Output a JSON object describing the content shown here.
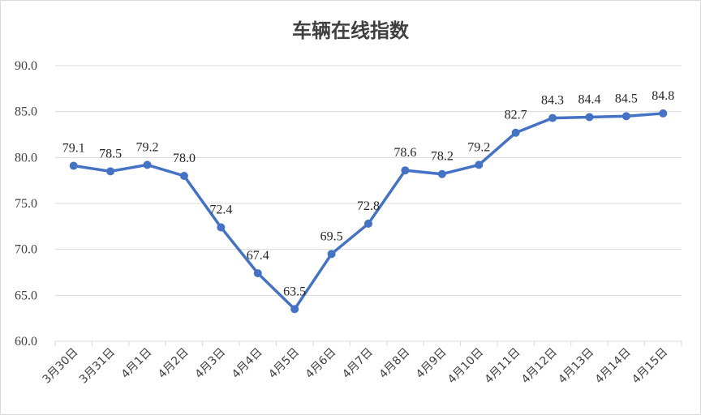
{
  "chart_data": {
    "type": "line",
    "title": "车辆在线指数",
    "categories": [
      "3月30日",
      "3月31日",
      "4月1日",
      "4月2日",
      "4月3日",
      "4月4日",
      "4月5日",
      "4月6日",
      "4月7日",
      "4月8日",
      "4月9日",
      "4月10日",
      "4月11日",
      "4月12日",
      "4月13日",
      "4月14日",
      "4月15日"
    ],
    "series": [
      {
        "values": [
          79.1,
          78.5,
          79.2,
          78.0,
          72.4,
          67.4,
          63.5,
          69.5,
          72.8,
          78.6,
          78.2,
          79.2,
          82.7,
          84.3,
          84.4,
          84.5,
          84.8
        ],
        "labels": [
          "79.1",
          "78.5",
          "79.2",
          "78.0",
          "72.4",
          "67.4",
          "63.5",
          "69.5",
          "72.8",
          "78.6",
          "78.2",
          "79.2",
          "82.7",
          "84.3",
          "84.4",
          "84.5",
          "84.8"
        ],
        "color": "#4472c4"
      }
    ],
    "ylim": [
      60,
      90
    ],
    "yticks": [
      "60.0",
      "65.0",
      "70.0",
      "75.0",
      "80.0",
      "85.0",
      "90.0"
    ],
    "grid": true,
    "legend": "none",
    "xlabel": "",
    "ylabel": ""
  }
}
